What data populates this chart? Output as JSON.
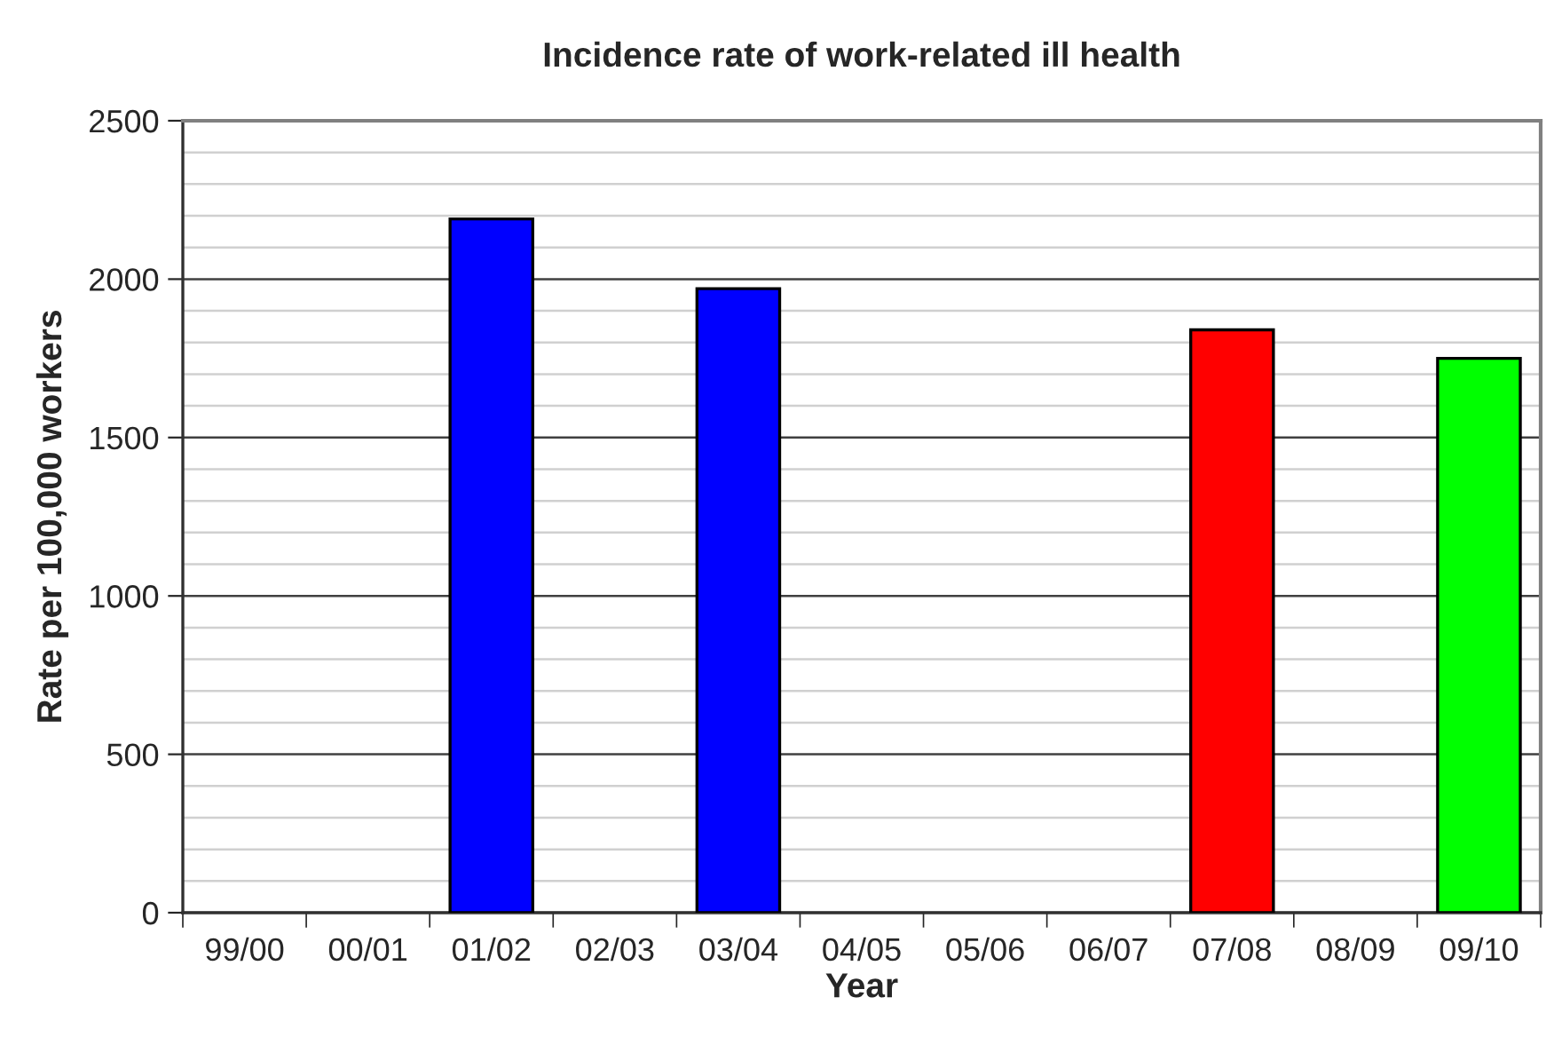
{
  "chart_data": {
    "type": "bar",
    "title": "Incidence rate of work-related ill health",
    "xlabel": "Year",
    "ylabel": "Rate per 100,000 workers",
    "categories": [
      "99/00",
      "00/01",
      "01/02",
      "02/03",
      "03/04",
      "04/05",
      "05/06",
      "06/07",
      "07/08",
      "08/09",
      "09/10"
    ],
    "values": [
      null,
      null,
      2190,
      null,
      1970,
      null,
      null,
      null,
      1840,
      null,
      1750
    ],
    "colors": [
      "#0000ff",
      "#0000ff",
      "#0000ff",
      "#0000ff",
      "#0000ff",
      "#0000ff",
      "#0000ff",
      "#0000ff",
      "#ff0000",
      "#00ff00",
      "#00ff00"
    ],
    "ylim": [
      0,
      2500
    ],
    "yticks": [
      0,
      {
        "value": 100,
        "label": null
      },
      {
        "value": 200,
        "label": null
      },
      {
        "value": 300,
        "label": null
      },
      {
        "value": 400,
        "label": null
      },
      500,
      {
        "value": 600,
        "label": null
      },
      {
        "value": 700,
        "label": null
      },
      {
        "value": 800,
        "label": null
      },
      {
        "value": 900,
        "label": null
      },
      1000,
      {
        "value": 1100,
        "label": null
      },
      {
        "value": 1200,
        "label": null
      },
      {
        "value": 1300,
        "label": null
      },
      {
        "value": 1400,
        "label": null
      },
      1500,
      {
        "value": 1600,
        "label": null
      },
      {
        "value": 1700,
        "label": null
      },
      {
        "value": 1800,
        "label": null
      },
      {
        "value": 1900,
        "label": null
      },
      2000,
      {
        "value": 2100,
        "label": null
      },
      {
        "value": 2200,
        "label": null
      },
      {
        "value": 2300,
        "label": null
      },
      {
        "value": 2400,
        "label": null
      },
      2500
    ],
    "grid": "y",
    "legend": false
  }
}
